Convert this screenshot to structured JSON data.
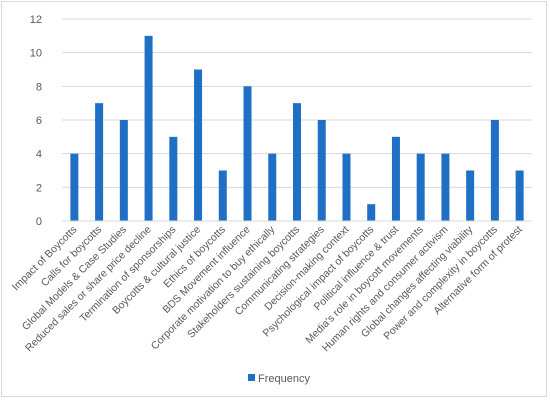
{
  "chart_data": {
    "type": "bar",
    "categories": [
      "Impact of Boycotts",
      "Calls for boycotts",
      "Global Models & Case Studies",
      "Reduced sales or share price decline",
      "Termination of sponsorships",
      "Boycotts & cultural justice",
      "Ethics of boycotts",
      "BDS Movement influence",
      "Corporate motivation to buy ethically",
      "Stakeholders sustaining boycotts",
      "Communicating strategies",
      "Decision-making context",
      "Psychological impact of boycotts",
      "Political influence & trust",
      "Media's role in boycott movements",
      "Human rights and consumer activism",
      "Global changes affecting viability",
      "Power and complexity in boycotts",
      "Alternative form of protest"
    ],
    "series": [
      {
        "name": "Frequency",
        "values": [
          4,
          7,
          6,
          11,
          5,
          9,
          3,
          8,
          4,
          7,
          6,
          4,
          1,
          5,
          4,
          4,
          3,
          6,
          3
        ]
      }
    ],
    "ylim": [
      0,
      12
    ],
    "yticks": [
      "0",
      "2",
      "4",
      "6",
      "8",
      "10",
      "12"
    ],
    "grid": true,
    "legend_position": "bottom",
    "colors": {
      "bar": "#1f6fc5",
      "grid": "#d9d9d9",
      "text": "#595959"
    }
  }
}
